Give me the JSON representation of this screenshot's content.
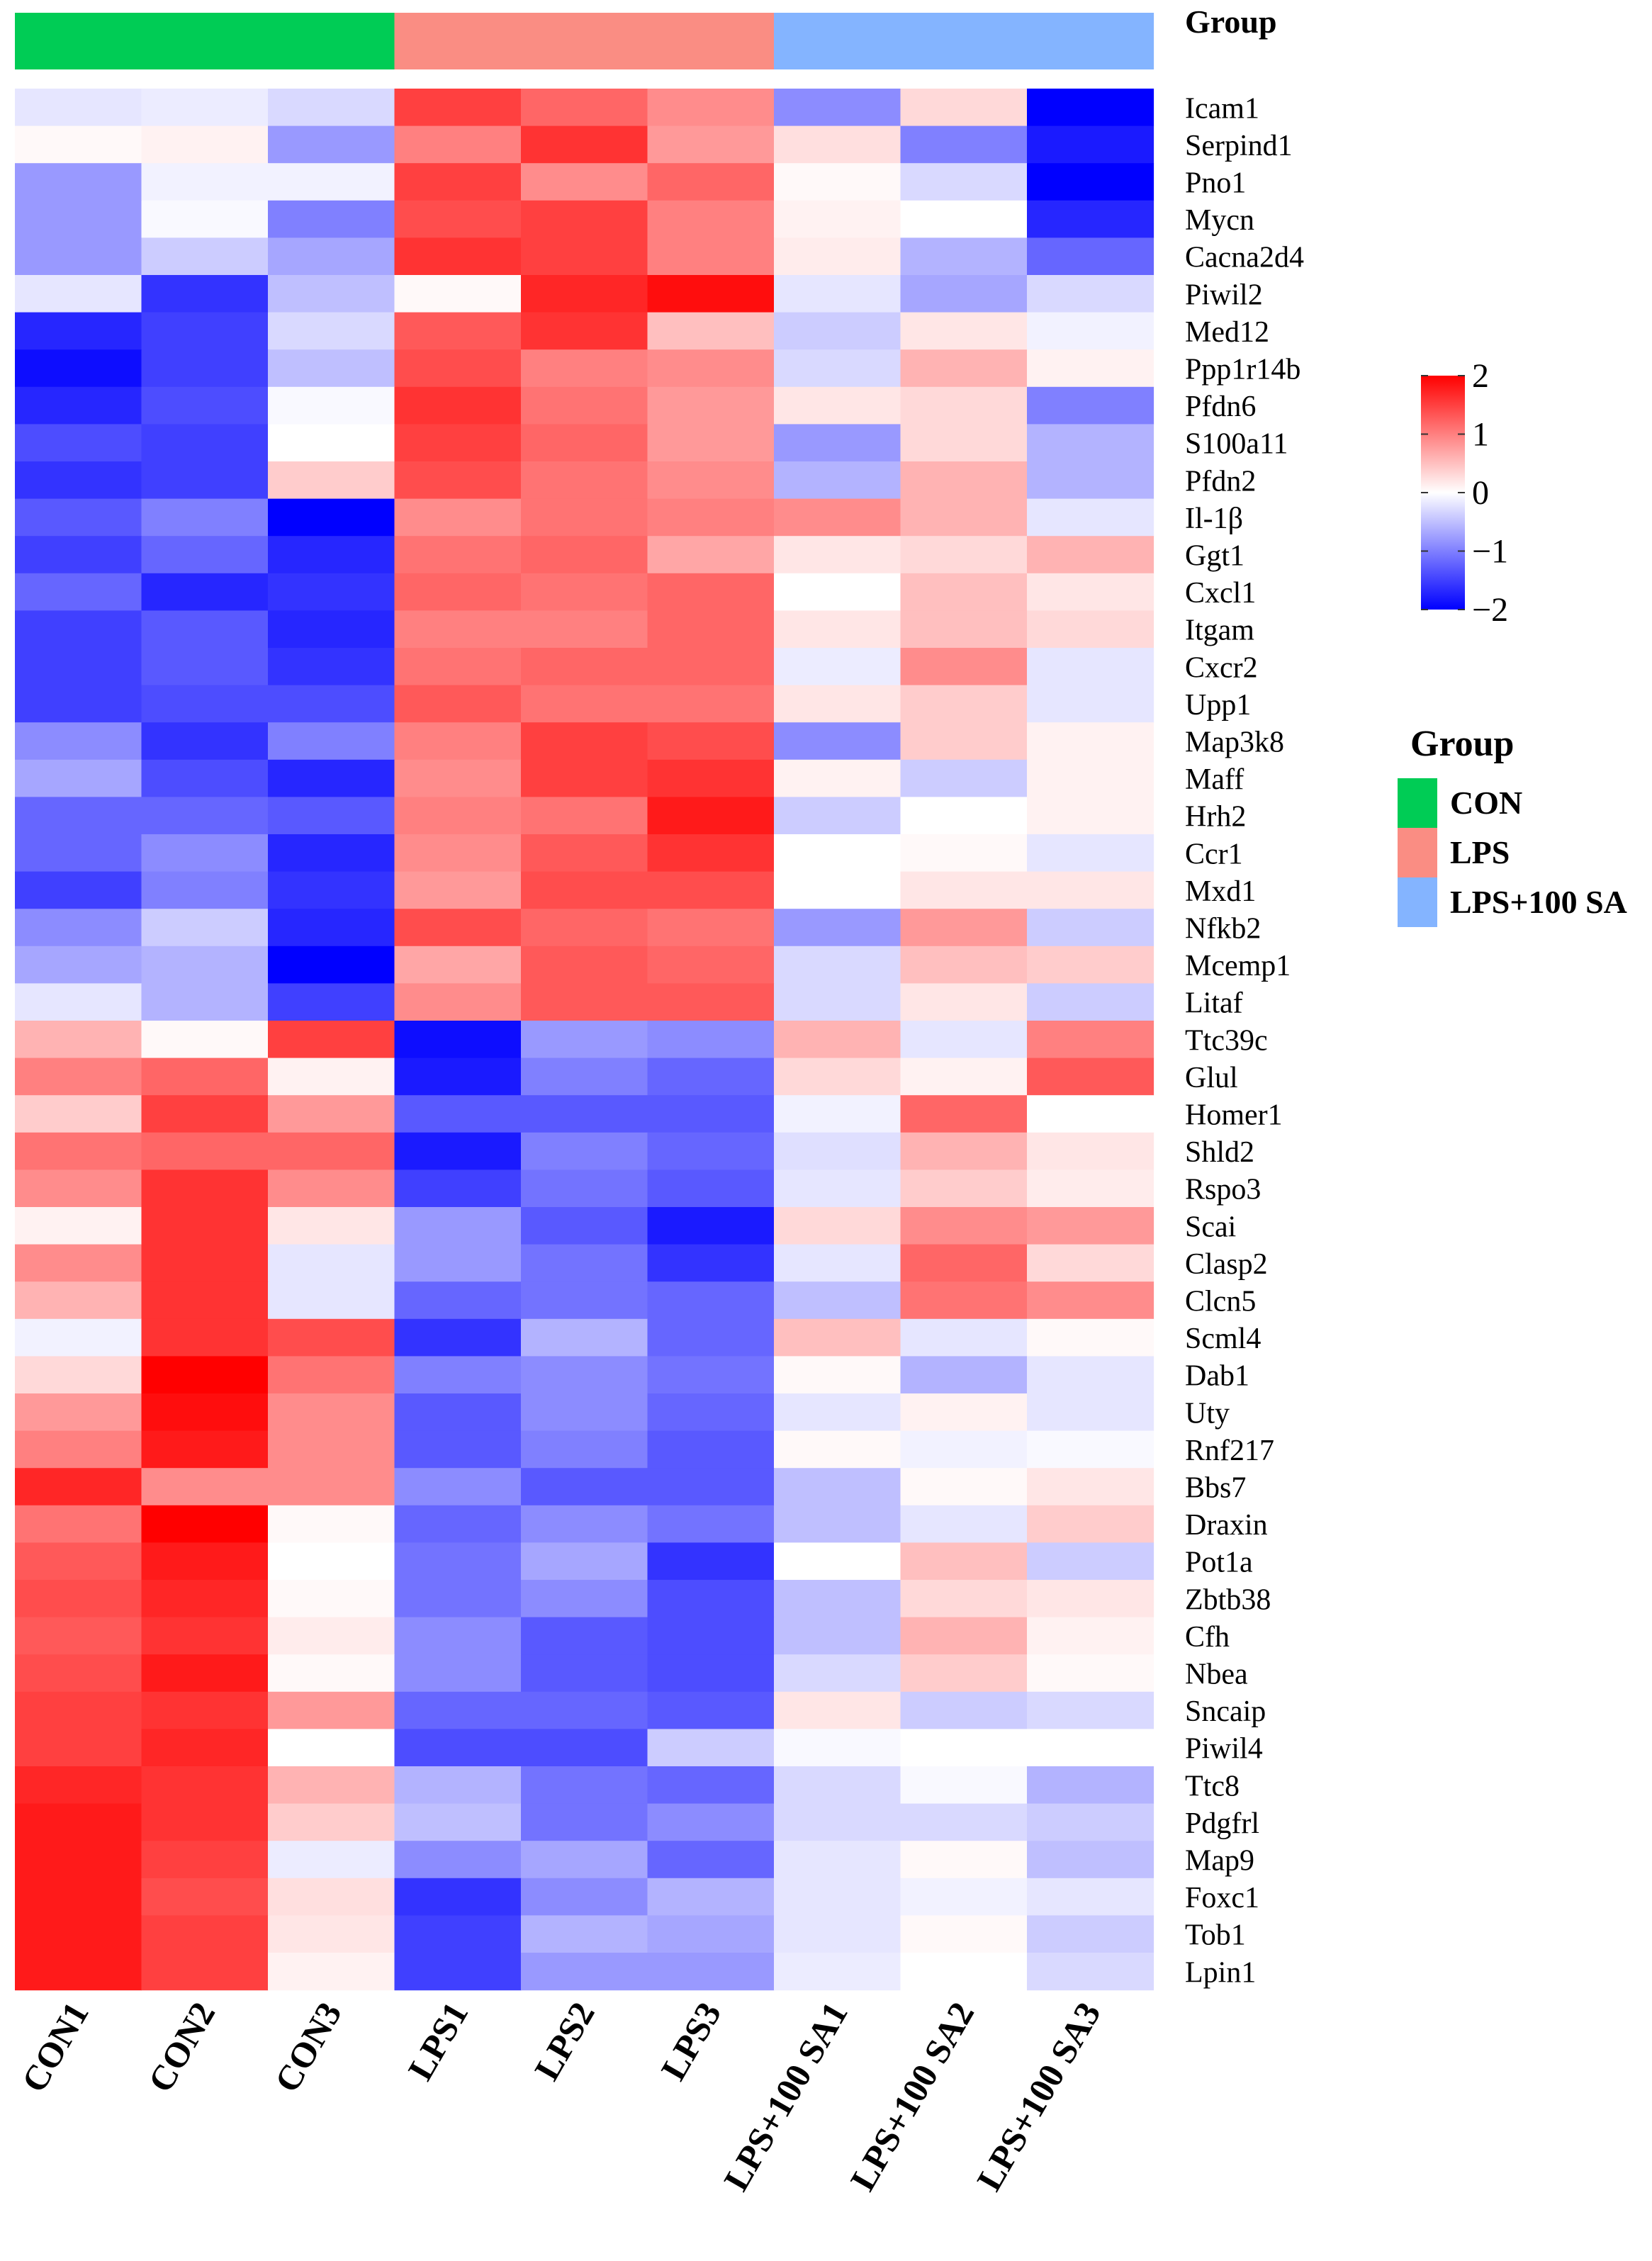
{
  "chart_data": {
    "type": "heatmap",
    "title": "",
    "annotation_title": "Group",
    "samples": [
      "CON1",
      "CON2",
      "CON3",
      "LPS1",
      "LPS2",
      "LPS3",
      "LPS+100 SA1",
      "LPS+100 SA2",
      "LPS+100 SA3"
    ],
    "sample_groups": [
      "CON",
      "CON",
      "CON",
      "LPS",
      "LPS",
      "LPS",
      "LPS+100 SA",
      "LPS+100 SA",
      "LPS+100 SA"
    ],
    "genes": [
      "Icam1",
      "Serpind1",
      "Pno1",
      "Mycn",
      "Cacna2d4",
      "Piwil2",
      "Med12",
      "Ppp1r14b",
      "Pfdn6",
      "S100a11",
      "Pfdn2",
      "Il-1β",
      "Ggt1",
      "Cxcl1",
      "Itgam",
      "Cxcr2",
      "Upp1",
      "Map3k8",
      "Maff",
      "Hrh2",
      "Ccr1",
      "Mxd1",
      "Nfkb2",
      "Mcemp1",
      "Litaf",
      "Ttc39c",
      "Glul",
      "Homer1",
      "Shld2",
      "Rspo3",
      "Scai",
      "Clasp2",
      "Clcn5",
      "Scml4",
      "Dab1",
      "Uty",
      "Rnf217",
      "Bbs7",
      "Draxin",
      "Pot1a",
      "Zbtb38",
      "Cfh",
      "Nbea",
      "Sncaip",
      "Piwil4",
      "Ttc8",
      "Pdgfrl",
      "Map9",
      "Foxc1",
      "Tob1",
      "Lpin1"
    ],
    "values": [
      [
        -0.2,
        -0.15,
        -0.3,
        1.5,
        1.2,
        0.9,
        -0.9,
        0.3,
        -2.0
      ],
      [
        0.05,
        0.1,
        -0.8,
        1.0,
        1.6,
        0.8,
        0.25,
        -1.0,
        -1.8
      ],
      [
        -0.8,
        -0.1,
        -0.1,
        1.5,
        0.9,
        1.2,
        0.05,
        -0.3,
        -2.0
      ],
      [
        -0.8,
        -0.05,
        -1.0,
        1.4,
        1.5,
        1.0,
        0.1,
        0.0,
        -1.7
      ],
      [
        -0.8,
        -0.4,
        -0.7,
        1.6,
        1.5,
        1.0,
        0.15,
        -0.6,
        -1.2
      ],
      [
        -0.2,
        -1.6,
        -0.5,
        0.05,
        1.7,
        1.9,
        -0.2,
        -0.7,
        -0.3
      ],
      [
        -1.7,
        -1.5,
        -0.3,
        1.3,
        1.6,
        0.5,
        -0.4,
        0.2,
        -0.1
      ],
      [
        -1.9,
        -1.5,
        -0.5,
        1.4,
        1.0,
        0.9,
        -0.3,
        0.6,
        0.1
      ],
      [
        -1.7,
        -1.4,
        -0.05,
        1.6,
        1.1,
        0.8,
        0.2,
        0.3,
        -1.0
      ],
      [
        -1.4,
        -1.5,
        0.0,
        1.5,
        1.2,
        0.8,
        -0.8,
        0.3,
        -0.6
      ],
      [
        -1.6,
        -1.5,
        0.4,
        1.4,
        1.1,
        0.9,
        -0.6,
        0.6,
        -0.6
      ],
      [
        -1.3,
        -1.0,
        -2.0,
        0.9,
        1.1,
        1.0,
        0.9,
        0.6,
        -0.2
      ],
      [
        -1.5,
        -1.2,
        -1.7,
        1.1,
        1.2,
        0.7,
        0.2,
        0.3,
        0.6
      ],
      [
        -1.2,
        -1.7,
        -1.6,
        1.2,
        1.1,
        1.2,
        0.0,
        0.5,
        0.2
      ],
      [
        -1.5,
        -1.3,
        -1.7,
        1.0,
        1.0,
        1.2,
        0.2,
        0.5,
        0.3
      ],
      [
        -1.5,
        -1.3,
        -1.6,
        1.1,
        1.2,
        1.2,
        -0.15,
        0.9,
        -0.2
      ],
      [
        -1.5,
        -1.4,
        -1.4,
        1.3,
        1.1,
        1.1,
        0.2,
        0.4,
        -0.2
      ],
      [
        -0.9,
        -1.6,
        -1.0,
        1.0,
        1.5,
        1.4,
        -0.9,
        0.4,
        0.1
      ],
      [
        -0.7,
        -1.4,
        -1.7,
        0.9,
        1.5,
        1.6,
        0.1,
        -0.4,
        0.1
      ],
      [
        -1.2,
        -1.2,
        -1.3,
        1.0,
        1.1,
        1.8,
        -0.4,
        0.0,
        0.1
      ],
      [
        -1.2,
        -0.9,
        -1.7,
        0.9,
        1.3,
        1.6,
        0.0,
        0.05,
        -0.2
      ],
      [
        -1.5,
        -1.0,
        -1.6,
        0.8,
        1.4,
        1.4,
        0.0,
        0.2,
        0.2
      ],
      [
        -0.9,
        -0.4,
        -1.7,
        1.4,
        1.2,
        1.1,
        -0.8,
        0.8,
        -0.4
      ],
      [
        -0.7,
        -0.6,
        -2.0,
        0.7,
        1.3,
        1.2,
        -0.3,
        0.5,
        0.4
      ],
      [
        -0.2,
        -0.6,
        -1.5,
        0.9,
        1.3,
        1.3,
        -0.3,
        0.2,
        -0.4
      ],
      [
        0.6,
        0.05,
        1.5,
        -1.9,
        -0.8,
        -0.9,
        0.6,
        -0.2,
        1.0
      ],
      [
        1.0,
        1.2,
        0.1,
        -1.8,
        -1.0,
        -1.2,
        0.3,
        0.1,
        1.3
      ],
      [
        0.4,
        1.5,
        0.8,
        -1.3,
        -1.3,
        -1.3,
        -0.1,
        1.2,
        0.0
      ],
      [
        1.1,
        1.2,
        1.2,
        -1.8,
        -1.0,
        -1.2,
        -0.25,
        0.6,
        0.2
      ],
      [
        0.9,
        1.6,
        0.9,
        -1.5,
        -1.1,
        -1.3,
        -0.2,
        0.4,
        0.15
      ],
      [
        0.1,
        1.6,
        0.2,
        -0.8,
        -1.3,
        -1.8,
        0.3,
        0.9,
        0.8
      ],
      [
        0.9,
        1.6,
        -0.2,
        -0.8,
        -1.1,
        -1.6,
        -0.2,
        1.2,
        0.3
      ],
      [
        0.6,
        1.6,
        -0.2,
        -1.2,
        -1.1,
        -1.2,
        -0.5,
        1.1,
        0.9
      ],
      [
        -0.1,
        1.6,
        1.4,
        -1.6,
        -0.6,
        -1.2,
        0.5,
        -0.2,
        0.05
      ],
      [
        0.3,
        2.0,
        1.1,
        -1.0,
        -0.9,
        -1.1,
        0.05,
        -0.6,
        -0.2
      ],
      [
        0.8,
        1.9,
        0.9,
        -1.3,
        -0.9,
        -1.2,
        -0.2,
        0.1,
        -0.2
      ],
      [
        1.0,
        1.8,
        0.9,
        -1.3,
        -1.0,
        -1.3,
        0.05,
        -0.1,
        -0.05
      ],
      [
        1.7,
        0.9,
        0.9,
        -0.9,
        -1.3,
        -1.3,
        -0.5,
        0.05,
        0.2
      ],
      [
        1.1,
        2.0,
        0.05,
        -1.2,
        -0.9,
        -1.1,
        -0.5,
        -0.2,
        0.4
      ],
      [
        1.3,
        1.8,
        0.0,
        -1.1,
        -0.7,
        -1.6,
        0.0,
        0.5,
        -0.4
      ],
      [
        1.4,
        1.7,
        0.05,
        -1.1,
        -0.9,
        -1.4,
        -0.5,
        0.3,
        0.2
      ],
      [
        1.3,
        1.6,
        0.15,
        -0.9,
        -1.3,
        -1.4,
        -0.5,
        0.6,
        0.1
      ],
      [
        1.4,
        1.8,
        0.05,
        -0.9,
        -1.3,
        -1.4,
        -0.3,
        0.4,
        0.05
      ],
      [
        1.5,
        1.6,
        0.8,
        -1.2,
        -1.2,
        -1.3,
        0.2,
        -0.4,
        -0.3
      ],
      [
        1.5,
        1.7,
        0.0,
        -1.4,
        -1.4,
        -0.4,
        -0.05,
        0.0,
        0.0
      ],
      [
        1.7,
        1.6,
        0.6,
        -0.6,
        -1.1,
        -1.2,
        -0.3,
        -0.05,
        -0.6
      ],
      [
        1.8,
        1.6,
        0.4,
        -0.5,
        -1.1,
        -0.9,
        -0.3,
        -0.3,
        -0.4
      ],
      [
        1.8,
        1.5,
        -0.15,
        -0.9,
        -0.7,
        -1.2,
        -0.2,
        0.05,
        -0.5
      ],
      [
        1.8,
        1.4,
        0.25,
        -1.6,
        -0.9,
        -0.6,
        -0.2,
        -0.1,
        -0.2
      ],
      [
        1.8,
        1.5,
        0.2,
        -1.5,
        -0.6,
        -0.7,
        -0.2,
        0.05,
        -0.4
      ],
      [
        1.8,
        1.5,
        0.1,
        -1.5,
        -0.8,
        -0.8,
        -0.15,
        0.0,
        -0.3
      ]
    ],
    "color_scale": {
      "range": [
        -2,
        2
      ],
      "ticks": [
        2,
        1,
        0,
        -1,
        -2
      ],
      "tick_labels": [
        "2",
        "1",
        "0",
        "−1",
        "−2"
      ],
      "low": "#0000FF",
      "mid": "#FFFFFF",
      "high": "#FF0000"
    },
    "groups": [
      {
        "name": "CON",
        "color": "#00CC55"
      },
      {
        "name": "LPS",
        "color": "#FA8D83"
      },
      {
        "name": "LPS+100 SA",
        "color": "#84B4FF"
      }
    ],
    "legend_title": "Group"
  }
}
